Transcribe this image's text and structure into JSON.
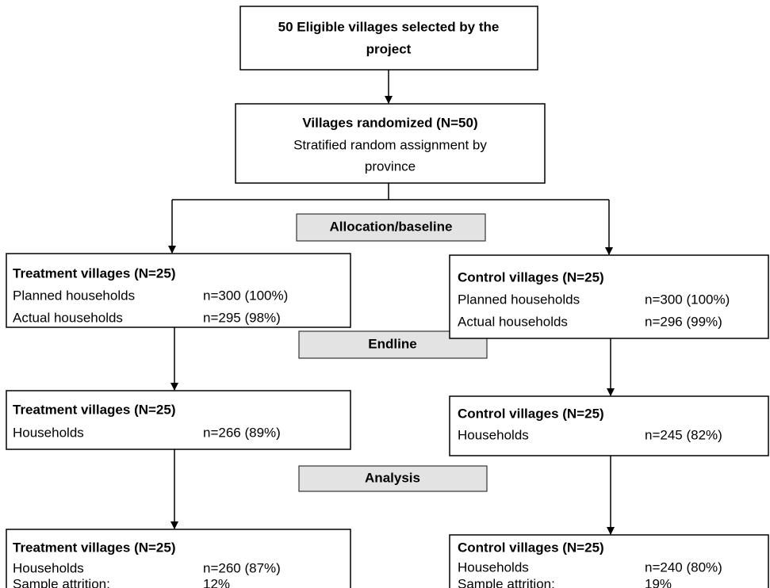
{
  "header": {
    "lines": [
      "50 Eligible villages selected by the",
      "project"
    ]
  },
  "randomization": {
    "title": "Villages randomized (N=50)",
    "lines": [
      "Stratified random assignment by",
      "province"
    ]
  },
  "stages": [
    "Allocation/baseline",
    "Endline",
    "Analysis"
  ],
  "treatment": [
    {
      "title": "Treatment villages (N=25)",
      "rows": [
        {
          "label": "Planned households",
          "value": "n=300 (100%)"
        },
        {
          "label": "Actual households",
          "value": "n=295 (98%)"
        }
      ]
    },
    {
      "title": "Treatment villages (N=25)",
      "rows": [
        {
          "label": "Households",
          "value": "n=266 (89%)"
        }
      ]
    },
    {
      "title": "Treatment villages (N=25)",
      "rows": [
        {
          "label": "Households",
          "value": "n=260 (87%)"
        },
        {
          "label": "Sample attrition:",
          "value": "12%"
        }
      ]
    }
  ],
  "control": [
    {
      "title": "Control villages (N=25)",
      "rows": [
        {
          "label": "Planned households",
          "value": "n=300 (100%)"
        },
        {
          "label": "Actual households",
          "value": "n=296 (99%)"
        }
      ]
    },
    {
      "title": "Control villages (N=25)",
      "rows": [
        {
          "label": "Households",
          "value": "n=245 (82%)"
        }
      ]
    },
    {
      "title": "Control villages (N=25)",
      "rows": [
        {
          "label": "Households",
          "value": "n=240 (80%)"
        },
        {
          "label": "Sample attrition:",
          "value": "19%"
        }
      ]
    }
  ]
}
